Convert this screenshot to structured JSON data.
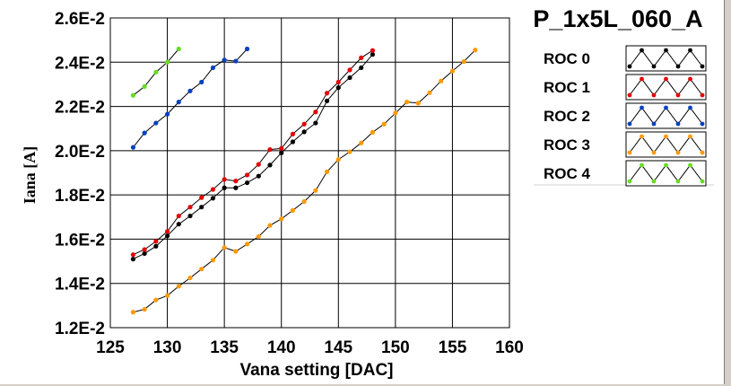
{
  "chart_data": {
    "type": "line",
    "title": "P_1x5L_060_A",
    "xlabel": "Vana setting [DAC]",
    "ylabel": "Iana [A]",
    "xlim": [
      125,
      160
    ],
    "ylim": [
      0.012,
      0.026
    ],
    "x_ticks": [
      "125",
      "130",
      "135",
      "140",
      "145",
      "150",
      "155",
      "160"
    ],
    "y_ticks": [
      "1.2E-2",
      "1.4E-2",
      "1.6E-2",
      "1.8E-2",
      "2.0E-2",
      "2.2E-2",
      "2.4E-2",
      "2.6E-2"
    ],
    "grid": true,
    "legend_position": "right",
    "series": [
      {
        "name": "ROC 0",
        "color": "#000000",
        "x": [
          127,
          128,
          129,
          130,
          131,
          132,
          133,
          134,
          135,
          136,
          137,
          138,
          139,
          140,
          141,
          142,
          143,
          144,
          145,
          146,
          147,
          148
        ],
        "y": [
          0.0151,
          0.01535,
          0.01568,
          0.01615,
          0.01668,
          0.01705,
          0.01745,
          0.01785,
          0.01832,
          0.01832,
          0.01855,
          0.01885,
          0.01935,
          0.0199,
          0.0204,
          0.02085,
          0.02125,
          0.02225,
          0.02285,
          0.0233,
          0.02375,
          0.02435
        ]
      },
      {
        "name": "ROC 1",
        "color": "#e60000",
        "x": [
          127,
          128,
          129,
          130,
          131,
          132,
          133,
          134,
          135,
          136,
          137,
          138,
          139,
          140,
          141,
          142,
          143,
          144,
          145,
          146,
          147,
          148
        ],
        "y": [
          0.0153,
          0.01553,
          0.0159,
          0.01635,
          0.01705,
          0.01745,
          0.01788,
          0.01825,
          0.0187,
          0.01863,
          0.0189,
          0.01938,
          0.02005,
          0.0201,
          0.02075,
          0.0212,
          0.02175,
          0.0226,
          0.0231,
          0.02365,
          0.0242,
          0.02453
        ]
      },
      {
        "name": "ROC 2",
        "color": "#0040c0",
        "x": [
          127,
          128,
          129,
          130,
          131,
          132,
          133,
          134,
          135,
          136,
          137
        ],
        "y": [
          0.02015,
          0.0208,
          0.02125,
          0.02165,
          0.0222,
          0.0227,
          0.0231,
          0.02375,
          0.0241,
          0.02405,
          0.0246
        ]
      },
      {
        "name": "ROC 3",
        "color": "#ff9900",
        "x": [
          127,
          128,
          129,
          130,
          131,
          132,
          133,
          134,
          135,
          136,
          137,
          138,
          139,
          140,
          141,
          142,
          143,
          144,
          145,
          146,
          147,
          148,
          149,
          150,
          151,
          152,
          153,
          154,
          155,
          156,
          157
        ],
        "y": [
          0.0127,
          0.01283,
          0.01325,
          0.01345,
          0.01387,
          0.01425,
          0.01465,
          0.01505,
          0.01562,
          0.01545,
          0.01578,
          0.01612,
          0.01662,
          0.01692,
          0.0173,
          0.0177,
          0.0182,
          0.01905,
          0.0196,
          0.01995,
          0.02035,
          0.02083,
          0.0212,
          0.0217,
          0.0222,
          0.02215,
          0.02262,
          0.02315,
          0.0236,
          0.02403,
          0.02455
        ]
      },
      {
        "name": "ROC 4",
        "color": "#66dd22",
        "x": [
          127,
          128,
          129,
          130,
          131
        ],
        "y": [
          0.0225,
          0.0229,
          0.02355,
          0.024,
          0.0246
        ]
      }
    ]
  }
}
